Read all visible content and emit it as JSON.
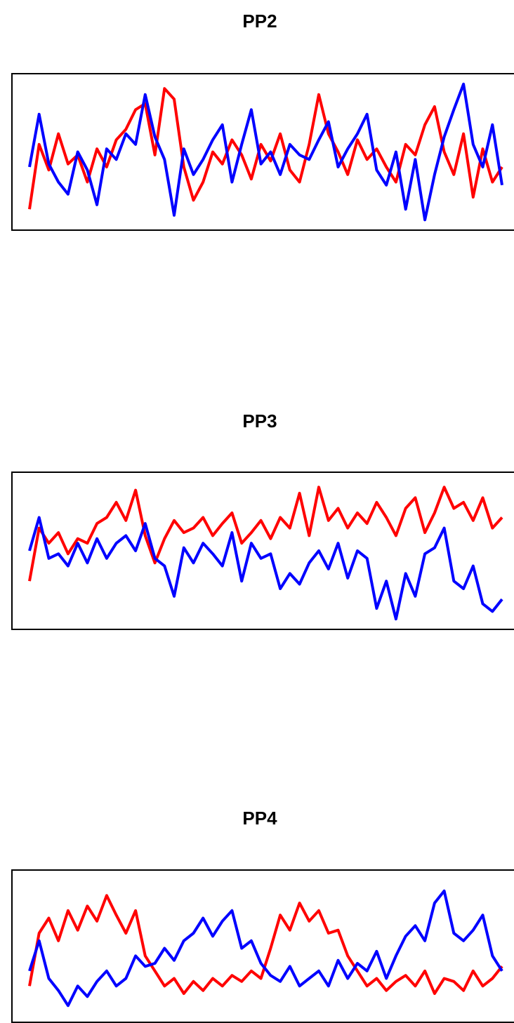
{
  "chart_data": [
    {
      "type": "line",
      "title": "PP2",
      "ylim": [
        0,
        100
      ],
      "series": [
        {
          "color": "#ff0000",
          "values": [
            12,
            55,
            38,
            62,
            42,
            48,
            30,
            52,
            40,
            58,
            65,
            78,
            82,
            48,
            92,
            85,
            40,
            18,
            30,
            50,
            42,
            58,
            48,
            32,
            55,
            44,
            62,
            38,
            30,
            55,
            88,
            62,
            50,
            35,
            58,
            45,
            52,
            40,
            30,
            55,
            48,
            68,
            80,
            50,
            35,
            62,
            20,
            52,
            30,
            40
          ]
        },
        {
          "color": "#0000ff",
          "values": [
            40,
            75,
            42,
            30,
            22,
            50,
            38,
            15,
            52,
            45,
            62,
            55,
            88,
            60,
            45,
            8,
            52,
            35,
            45,
            58,
            68,
            30,
            55,
            78,
            42,
            50,
            35,
            55,
            48,
            45,
            58,
            70,
            40,
            52,
            62,
            75,
            38,
            28,
            50,
            12,
            45,
            5,
            35,
            60,
            78,
            95,
            55,
            40,
            68,
            28
          ]
        }
      ]
    },
    {
      "type": "line",
      "title": "PP3",
      "ylim": [
        0,
        100
      ],
      "series": [
        {
          "color": "#ff0000",
          "values": [
            30,
            65,
            55,
            62,
            48,
            58,
            55,
            68,
            72,
            82,
            70,
            90,
            60,
            42,
            58,
            70,
            62,
            65,
            72,
            60,
            68,
            75,
            55,
            62,
            70,
            58,
            72,
            65,
            88,
            60,
            92,
            70,
            78,
            65,
            75,
            68,
            82,
            72,
            60,
            78,
            85,
            62,
            75,
            92,
            78,
            82,
            70,
            85,
            65,
            72
          ]
        },
        {
          "color": "#0000ff",
          "values": [
            50,
            72,
            45,
            48,
            40,
            55,
            42,
            58,
            45,
            55,
            60,
            50,
            68,
            45,
            40,
            20,
            52,
            42,
            55,
            48,
            40,
            62,
            30,
            55,
            45,
            48,
            25,
            35,
            28,
            42,
            50,
            38,
            55,
            32,
            50,
            45,
            12,
            30,
            5,
            35,
            20,
            48,
            52,
            65,
            30,
            25,
            40,
            15,
            10,
            18
          ]
        }
      ]
    },
    {
      "type": "line",
      "title": "PP4",
      "ylim": [
        0,
        100
      ],
      "series": [
        {
          "color": "#ff0000",
          "values": [
            25,
            60,
            70,
            55,
            75,
            62,
            78,
            68,
            85,
            72,
            60,
            75,
            45,
            35,
            25,
            30,
            20,
            28,
            22,
            30,
            25,
            32,
            28,
            35,
            30,
            50,
            72,
            62,
            80,
            68,
            75,
            60,
            62,
            45,
            35,
            25,
            30,
            22,
            28,
            32,
            25,
            35,
            20,
            30,
            28,
            22,
            35,
            25,
            30,
            38
          ]
        },
        {
          "color": "#0000ff",
          "values": [
            35,
            55,
            30,
            22,
            12,
            25,
            18,
            28,
            35,
            25,
            30,
            45,
            38,
            40,
            50,
            42,
            55,
            60,
            70,
            58,
            68,
            75,
            50,
            55,
            40,
            32,
            28,
            38,
            25,
            30,
            35,
            25,
            42,
            30,
            40,
            35,
            48,
            30,
            45,
            58,
            65,
            55,
            80,
            88,
            60,
            55,
            62,
            72,
            45,
            35
          ]
        }
      ]
    }
  ]
}
